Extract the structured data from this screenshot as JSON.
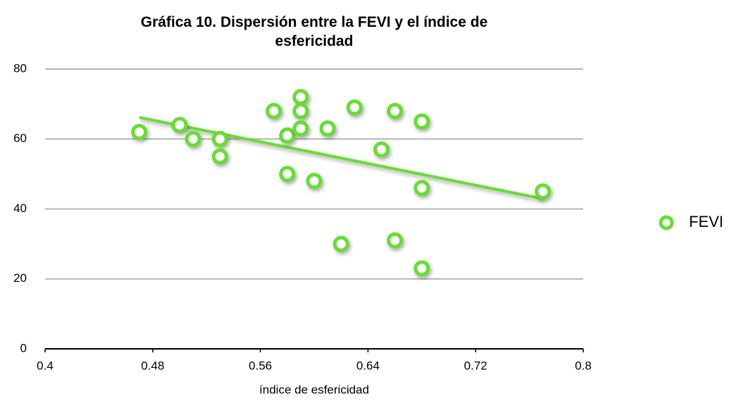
{
  "chart_data": {
    "type": "scatter",
    "title": "Gráfica 10. Dispersión entre la FEVI y el índice de esfericidad",
    "x_label": "índice de esfericidad",
    "series": [
      {
        "name": "FEVI",
        "color": "#66dd33",
        "x": [
          0.47,
          0.5,
          0.51,
          0.53,
          0.53,
          0.57,
          0.58,
          0.58,
          0.59,
          0.59,
          0.59,
          0.6,
          0.61,
          0.62,
          0.63,
          0.65,
          0.66,
          0.66,
          0.68,
          0.68,
          0.68,
          0.77
        ],
        "values": [
          62,
          64,
          60,
          60,
          55,
          68,
          61,
          50,
          72,
          68,
          63,
          48,
          63,
          30,
          69,
          57,
          68,
          31,
          65,
          46,
          23,
          45
        ]
      }
    ],
    "trendline": true,
    "xlim": [
      0.4,
      0.8
    ],
    "xticks": [
      0.4,
      0.48,
      0.56,
      0.64,
      0.72,
      0.8
    ],
    "ylim": [
      0,
      80
    ],
    "yticks": [
      0,
      20,
      40,
      60,
      80
    ],
    "grid": true,
    "legend": "right"
  }
}
